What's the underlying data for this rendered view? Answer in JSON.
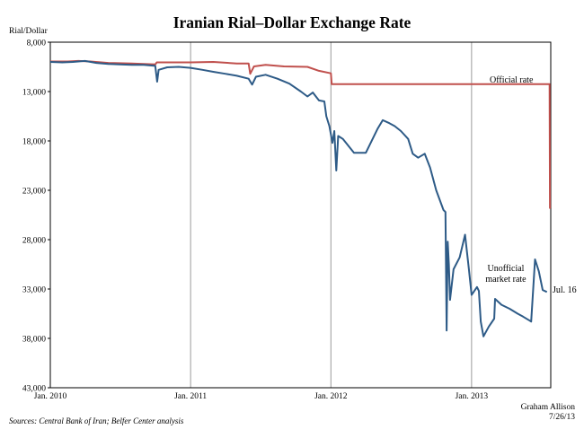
{
  "chart_data": {
    "type": "line",
    "title": "Iranian Rial–Dollar Exchange Rate",
    "ylabel": "Rial/Dollar",
    "xlabel": "",
    "y_inverted": true,
    "ylim": [
      8000,
      43000
    ],
    "xlim": [
      "2010-01-01",
      "2013-07-26"
    ],
    "y_ticks": [
      "8,000",
      "13,000",
      "18,000",
      "23,000",
      "28,000",
      "33,000",
      "38,000",
      "43,000"
    ],
    "x_ticks": [
      {
        "date": "2010-01-01",
        "label": "Jan. 2010"
      },
      {
        "date": "2011-01-01",
        "label": "Jan. 2011"
      },
      {
        "date": "2012-01-01",
        "label": "Jan. 2012"
      },
      {
        "date": "2013-01-01",
        "label": "Jan. 2013"
      }
    ],
    "vertical_gridlines": true,
    "horizontal_gridlines": false,
    "series": [
      {
        "name": "Official rate",
        "color": "#c0504d",
        "points": [
          [
            "2010-01-01",
            9950
          ],
          [
            "2010-02-15",
            9950
          ],
          [
            "2010-03-15",
            9900
          ],
          [
            "2010-04-15",
            9950
          ],
          [
            "2010-06-01",
            10100
          ],
          [
            "2010-08-01",
            10150
          ],
          [
            "2010-10-01",
            10250
          ],
          [
            "2010-10-05",
            10050
          ],
          [
            "2010-11-15",
            10050
          ],
          [
            "2011-01-01",
            10050
          ],
          [
            "2011-03-01",
            10000
          ],
          [
            "2011-05-01",
            10150
          ],
          [
            "2011-06-01",
            10150
          ],
          [
            "2011-06-05",
            11200
          ],
          [
            "2011-06-15",
            10450
          ],
          [
            "2011-07-15",
            10300
          ],
          [
            "2011-09-01",
            10450
          ],
          [
            "2011-11-01",
            10500
          ],
          [
            "2011-12-01",
            10900
          ],
          [
            "2012-01-01",
            11150
          ],
          [
            "2012-01-03",
            12250
          ],
          [
            "2012-06-01",
            12250
          ],
          [
            "2012-12-01",
            12250
          ],
          [
            "2013-03-01",
            12250
          ],
          [
            "2013-07-01",
            12250
          ],
          [
            "2013-07-23",
            12250
          ],
          [
            "2013-07-24",
            24800
          ],
          [
            "2013-07-26",
            24800
          ]
        ]
      },
      {
        "name": "Unofficial market rate",
        "color": "#2e5b87",
        "points": [
          [
            "2010-01-01",
            10000
          ],
          [
            "2010-02-01",
            10050
          ],
          [
            "2010-03-01",
            10000
          ],
          [
            "2010-04-01",
            9900
          ],
          [
            "2010-05-01",
            10100
          ],
          [
            "2010-06-01",
            10200
          ],
          [
            "2010-07-01",
            10250
          ],
          [
            "2010-08-01",
            10300
          ],
          [
            "2010-09-01",
            10300
          ],
          [
            "2010-10-01",
            10400
          ],
          [
            "2010-10-06",
            12000
          ],
          [
            "2010-10-10",
            10800
          ],
          [
            "2010-11-01",
            10550
          ],
          [
            "2010-12-01",
            10500
          ],
          [
            "2011-01-01",
            10600
          ],
          [
            "2011-02-01",
            10800
          ],
          [
            "2011-03-01",
            11000
          ],
          [
            "2011-04-01",
            11200
          ],
          [
            "2011-05-01",
            11400
          ],
          [
            "2011-06-01",
            11700
          ],
          [
            "2011-06-10",
            12300
          ],
          [
            "2011-06-20",
            11500
          ],
          [
            "2011-07-15",
            11300
          ],
          [
            "2011-08-15",
            11700
          ],
          [
            "2011-09-15",
            12200
          ],
          [
            "2011-10-15",
            13000
          ],
          [
            "2011-11-01",
            13500
          ],
          [
            "2011-11-15",
            13100
          ],
          [
            "2011-12-01",
            13900
          ],
          [
            "2011-12-15",
            14000
          ],
          [
            "2011-12-20",
            15500
          ],
          [
            "2011-12-28",
            16500
          ],
          [
            "2012-01-05",
            18200
          ],
          [
            "2012-01-10",
            17000
          ],
          [
            "2012-01-15",
            21000
          ],
          [
            "2012-01-20",
            17500
          ],
          [
            "2012-02-01",
            17800
          ],
          [
            "2012-03-01",
            19200
          ],
          [
            "2012-04-01",
            19200
          ],
          [
            "2012-05-01",
            16800
          ],
          [
            "2012-05-15",
            15900
          ],
          [
            "2012-06-01",
            16200
          ],
          [
            "2012-06-15",
            16500
          ],
          [
            "2012-07-01",
            17000
          ],
          [
            "2012-07-20",
            17800
          ],
          [
            "2012-08-01",
            19300
          ],
          [
            "2012-08-15",
            19700
          ],
          [
            "2012-09-01",
            19300
          ],
          [
            "2012-09-15",
            20700
          ],
          [
            "2012-10-01",
            23000
          ],
          [
            "2012-10-20",
            25000
          ],
          [
            "2012-10-25",
            25200
          ],
          [
            "2012-10-28",
            37200
          ],
          [
            "2012-10-31",
            28200
          ],
          [
            "2012-11-03",
            30500
          ],
          [
            "2012-11-06",
            34100
          ],
          [
            "2012-11-15",
            31000
          ],
          [
            "2012-12-01",
            29800
          ],
          [
            "2012-12-15",
            27500
          ],
          [
            "2012-12-25",
            31000
          ],
          [
            "2013-01-01",
            33600
          ],
          [
            "2013-01-15",
            32800
          ],
          [
            "2013-01-20",
            33200
          ],
          [
            "2013-01-25",
            36300
          ],
          [
            "2013-02-01",
            37800
          ],
          [
            "2013-02-15",
            36800
          ],
          [
            "2013-03-01",
            36000
          ],
          [
            "2013-03-03",
            34000
          ],
          [
            "2013-03-20",
            34600
          ],
          [
            "2013-04-10",
            35000
          ],
          [
            "2013-05-01",
            35500
          ],
          [
            "2013-05-15",
            35800
          ],
          [
            "2013-06-01",
            36200
          ],
          [
            "2013-06-05",
            36300
          ],
          [
            "2013-06-15",
            30000
          ],
          [
            "2013-06-25",
            31200
          ],
          [
            "2013-07-05",
            33100
          ],
          [
            "2013-07-16",
            33300
          ]
        ]
      }
    ],
    "annotations": [
      {
        "text": "Official rate",
        "series": "Official rate"
      },
      {
        "text_lines": [
          "Unofficial",
          "market rate"
        ],
        "series": "Unofficial market rate"
      },
      {
        "text": "Jul. 16",
        "series": "Unofficial market rate"
      }
    ],
    "credit": [
      "Graham Allison",
      "7/26/13"
    ],
    "source": "Sources: Central Bank of Iran; Belfer Center analysis"
  }
}
